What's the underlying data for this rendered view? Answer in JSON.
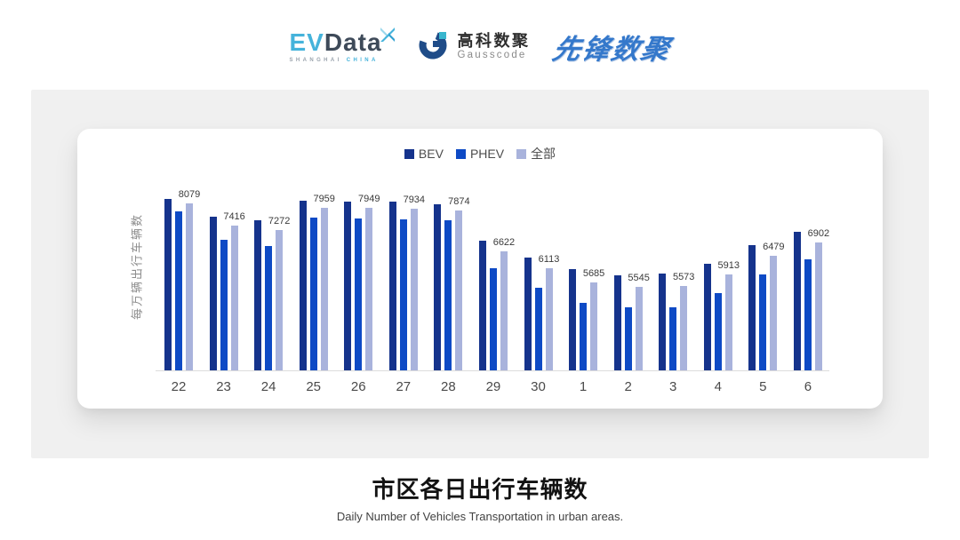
{
  "header": {
    "logos": {
      "evdata": {
        "text_ev": "EV",
        "text_data": "Data",
        "sub_left": "SHANGHAI",
        "sub_right": "CHINA",
        "accent_color": "#45B3DB",
        "dark_color": "#3E4A59"
      },
      "gausscode": {
        "cn": "高科数聚",
        "en": "Gausscode",
        "icon_color": "#1F4C88",
        "icon_accent": "#39B6CE"
      },
      "xianfeng": {
        "text": "先锋数聚",
        "color": "#3478CB"
      }
    }
  },
  "chart_data": {
    "type": "bar",
    "title": "市区各日出行车辆数",
    "subtitle": "Daily Number of Vehicles Transportation in urban areas.",
    "ylabel": "每万辆出行车辆数",
    "categories": [
      "22",
      "23",
      "24",
      "25",
      "26",
      "27",
      "28",
      "29",
      "30",
      "1",
      "2",
      "3",
      "4",
      "5",
      "6"
    ],
    "series": [
      {
        "key": "bev",
        "name": "BEV",
        "color": "#15338C",
        "values": [
          8220,
          7680,
          7570,
          8160,
          8140,
          8150,
          8060,
          6940,
          6440,
          6080,
          5900,
          5950,
          6240,
          6800,
          7220
        ]
      },
      {
        "key": "phev",
        "name": "PHEV",
        "color": "#0E4AC5",
        "values": [
          7850,
          6980,
          6780,
          7650,
          7630,
          7610,
          7570,
          6100,
          5520,
          5050,
          4930,
          4930,
          5360,
          5930,
          6380
        ]
      },
      {
        "key": "all",
        "name": "全部",
        "color": "#A9B3DC",
        "labels_shown": true,
        "values": [
          8079,
          7416,
          7272,
          7959,
          7949,
          7934,
          7874,
          6622,
          6113,
          5685,
          5545,
          5573,
          5913,
          6479,
          6902
        ]
      }
    ],
    "ylim": [
      3000,
      8950
    ],
    "grid": false,
    "legend_position": "top"
  },
  "footer": {
    "title": "市区各日出行车辆数",
    "subtitle": "Daily Number of Vehicles Transportation in urban areas."
  }
}
